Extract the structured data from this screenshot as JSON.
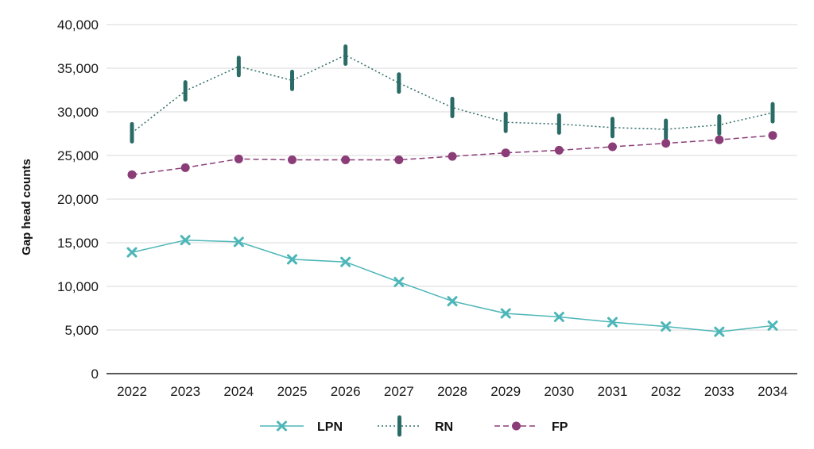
{
  "chart_data": {
    "type": "line",
    "title": "",
    "xlabel": "",
    "ylabel": "Gap head counts",
    "ylim": [
      0,
      40000
    ],
    "yticks": [
      0,
      5000,
      10000,
      15000,
      20000,
      25000,
      30000,
      35000,
      40000
    ],
    "ytick_labels": [
      "0",
      "5,000",
      "10,000",
      "15,000",
      "20,000",
      "25,000",
      "30,000",
      "35,000",
      "40,000"
    ],
    "grid": "horizontal",
    "legend_position": "bottom",
    "categories": [
      "2022",
      "2023",
      "2024",
      "2025",
      "2026",
      "2027",
      "2028",
      "2029",
      "2030",
      "2031",
      "2032",
      "2033",
      "2034"
    ],
    "series": [
      {
        "name": "LPN",
        "marker": "x",
        "line_style": "solid",
        "color": "#4db6b8",
        "values": [
          13900,
          15300,
          15100,
          13100,
          12800,
          10500,
          8300,
          6900,
          6500,
          5900,
          5400,
          4800,
          5500
        ]
      },
      {
        "name": "RN",
        "marker": "bar",
        "line_style": "dotted",
        "color": "#2b6b66",
        "values": [
          27600,
          32400,
          35200,
          33600,
          36500,
          33300,
          30500,
          28800,
          28600,
          28200,
          28000,
          28500,
          29900
        ]
      },
      {
        "name": "FP",
        "marker": "circle",
        "line_style": "dashed",
        "color": "#8b3d78",
        "values": [
          22800,
          23600,
          24600,
          24500,
          24500,
          24500,
          24900,
          25300,
          25600,
          26000,
          26400,
          26800,
          27300
        ]
      }
    ]
  }
}
